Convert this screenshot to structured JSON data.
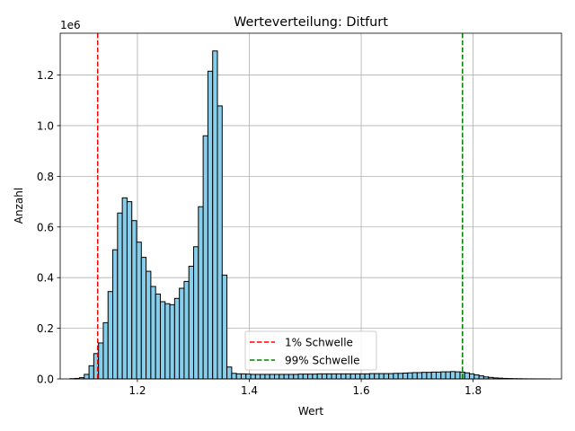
{
  "chart_data": {
    "type": "bar",
    "title": "Werteverteilung: Ditfurt",
    "xlabel": "Wert",
    "ylabel": "Anzahl",
    "y_offset_label": "1e6",
    "xlim": [
      1.062,
      1.958
    ],
    "ylim": [
      0,
      1365000
    ],
    "grid": true,
    "bar_color": "#87ceeb",
    "bar_edge_color": "#000000",
    "x_ticks": [
      {
        "value": 1.2,
        "label": "1.2"
      },
      {
        "value": 1.4,
        "label": "1.4"
      },
      {
        "value": 1.6,
        "label": "1.6"
      },
      {
        "value": 1.8,
        "label": "1.8"
      }
    ],
    "y_ticks": [
      {
        "value": 0,
        "label": "0.0"
      },
      {
        "value": 200000,
        "label": "0.2"
      },
      {
        "value": 400000,
        "label": "0.4"
      },
      {
        "value": 600000,
        "label": "0.6"
      },
      {
        "value": 800000,
        "label": "0.8"
      },
      {
        "value": 1000000,
        "label": "1.0"
      },
      {
        "value": 1200000,
        "label": "1.2"
      }
    ],
    "bin_width": 0.0085,
    "bin_starts": [
      1.0795,
      1.088,
      1.0965,
      1.105,
      1.1135,
      1.122,
      1.1305,
      1.139,
      1.1475,
      1.156,
      1.1645,
      1.173,
      1.1815,
      1.19,
      1.1985,
      1.207,
      1.2155,
      1.224,
      1.2325,
      1.241,
      1.2495,
      1.258,
      1.2665,
      1.275,
      1.2835,
      1.292,
      1.3005,
      1.309,
      1.3175,
      1.326,
      1.3345,
      1.343,
      1.3515,
      1.36,
      1.3685,
      1.377,
      1.3855,
      1.394,
      1.4025,
      1.411,
      1.4195,
      1.428,
      1.4365,
      1.445,
      1.4535,
      1.462,
      1.4705,
      1.479,
      1.4875,
      1.496,
      1.5045,
      1.513,
      1.5215,
      1.53,
      1.5385,
      1.547,
      1.5555,
      1.564,
      1.5725,
      1.581,
      1.5895,
      1.598,
      1.6065,
      1.615,
      1.6235,
      1.632,
      1.6405,
      1.649,
      1.6575,
      1.666,
      1.6745,
      1.683,
      1.6915,
      1.7,
      1.7085,
      1.717,
      1.7255,
      1.734,
      1.7425,
      1.751,
      1.7595,
      1.768,
      1.7765,
      1.785,
      1.7935,
      1.802,
      1.8105,
      1.819,
      1.8275,
      1.836,
      1.8445,
      1.853,
      1.8615,
      1.87,
      1.8785,
      1.887,
      1.8955,
      1.904,
      1.9125,
      1.921,
      1.9295
    ],
    "counts": [
      1000,
      2000,
      5000,
      18000,
      52000,
      100000,
      142000,
      222000,
      345000,
      510000,
      655000,
      715000,
      700000,
      625000,
      540000,
      480000,
      425000,
      365000,
      335000,
      305000,
      297000,
      293000,
      318000,
      358000,
      385000,
      445000,
      522000,
      680000,
      960000,
      1215000,
      1295000,
      1078000,
      410000,
      47000,
      22000,
      20000,
      20000,
      19000,
      18000,
      18000,
      18000,
      18000,
      18000,
      18000,
      18000,
      18000,
      18000,
      18000,
      19000,
      19000,
      19000,
      19000,
      20000,
      20000,
      20000,
      20000,
      20000,
      20000,
      20000,
      20000,
      20000,
      20000,
      20000,
      21000,
      21000,
      21000,
      21000,
      21000,
      22000,
      22000,
      23000,
      24000,
      25000,
      25000,
      26000,
      26000,
      27000,
      27000,
      28000,
      28000,
      29000,
      28000,
      27000,
      24000,
      20000,
      16000,
      12000,
      8000,
      6000,
      4000,
      3000,
      2000,
      1500,
      1000,
      800,
      500,
      300,
      200,
      100,
      100,
      50
    ],
    "thresholds": [
      {
        "name": "1% Schwelle",
        "value": 1.129,
        "color": "#ff0000"
      },
      {
        "name": "99% Schwelle",
        "value": 1.781,
        "color": "#008000"
      }
    ],
    "legend_position": "lower center"
  }
}
